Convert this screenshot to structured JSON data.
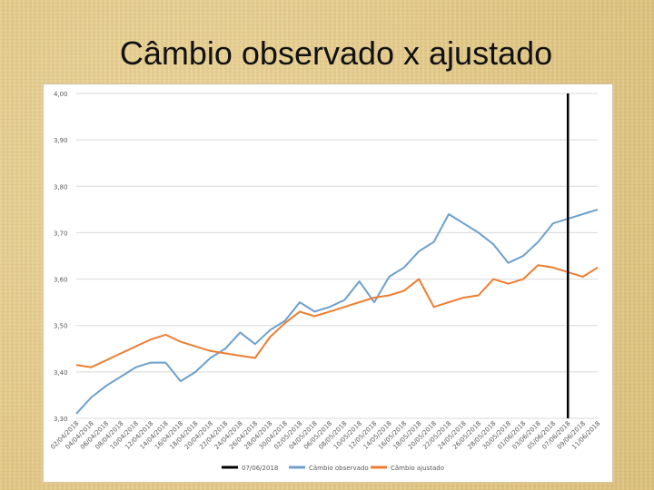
{
  "slide": {
    "title": "Câmbio observado x ajustado"
  },
  "colors": {
    "observed": "#6ca0cd",
    "adjusted": "#ed7d31",
    "marker": "#000000",
    "grid": "#d9d9d9"
  },
  "chart_data": {
    "type": "line",
    "y_ticks": [
      "3,30",
      "3,40",
      "3,50",
      "3,60",
      "3,70",
      "3,80",
      "3,90",
      "4,00"
    ],
    "ylim": [
      3.3,
      4.0
    ],
    "x_tick_labels": [
      "02/04/2018",
      "04/04/2018",
      "06/04/2018",
      "08/04/2018",
      "10/04/2018",
      "12/04/2018",
      "14/04/2018",
      "16/04/2018",
      "18/04/2018",
      "20/04/2018",
      "22/04/2018",
      "24/04/2018",
      "26/04/2018",
      "28/04/2018",
      "30/04/2018",
      "02/05/2018",
      "04/05/2018",
      "06/05/2018",
      "08/05/2018",
      "10/05/2018",
      "12/05/2018",
      "14/05/2018",
      "16/05/2018",
      "18/05/2018",
      "20/05/2018",
      "22/05/2018",
      "24/05/2018",
      "26/05/2018",
      "28/05/2018",
      "30/05/2018",
      "01/06/2018",
      "03/06/2018",
      "05/06/2018",
      "07/06/2018",
      "09/06/2018",
      "11/06/2018"
    ],
    "grid": true,
    "legend_position": "bottom",
    "marker_line": {
      "name": "07/06/2018",
      "x_index": 33
    },
    "series": [
      {
        "name": "Câmbio observado",
        "x_index": [
          0,
          1,
          2,
          3,
          4,
          5,
          6,
          7,
          8,
          9,
          10,
          11,
          12,
          13,
          14,
          15,
          16,
          17,
          18,
          19,
          20,
          21,
          22,
          23,
          24,
          25,
          26,
          27,
          28,
          29,
          30,
          31,
          32,
          33,
          34,
          35
        ],
        "values": [
          3.31,
          3.345,
          3.37,
          3.39,
          3.41,
          3.42,
          3.42,
          3.38,
          3.4,
          3.43,
          3.45,
          3.485,
          3.46,
          3.49,
          3.51,
          3.55,
          3.53,
          3.54,
          3.555,
          3.595,
          3.55,
          3.605,
          3.625,
          3.66,
          3.68,
          3.74,
          3.72,
          3.7,
          3.675,
          3.635,
          3.65,
          3.68,
          3.72,
          3.73,
          3.74,
          3.75
        ]
      },
      {
        "name": "Câmbio ajustado",
        "x_index": [
          0,
          1,
          2,
          3,
          4,
          5,
          6,
          7,
          8,
          9,
          10,
          11,
          12,
          13,
          14,
          15,
          16,
          17,
          18,
          19,
          20,
          21,
          22,
          23,
          24,
          25,
          26,
          27,
          28,
          29,
          30,
          31,
          32,
          33,
          34,
          35
        ],
        "values": [
          3.415,
          3.41,
          3.425,
          3.44,
          3.455,
          3.47,
          3.48,
          3.465,
          3.455,
          3.445,
          3.44,
          3.435,
          3.43,
          3.475,
          3.505,
          3.53,
          3.52,
          3.53,
          3.54,
          3.55,
          3.56,
          3.565,
          3.575,
          3.6,
          3.54,
          3.55,
          3.56,
          3.565,
          3.6,
          3.59,
          3.6,
          3.63,
          3.625,
          3.615,
          3.605,
          3.625
        ]
      }
    ]
  }
}
